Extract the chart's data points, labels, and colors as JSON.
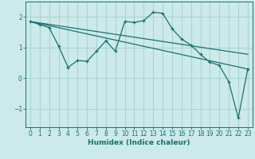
{
  "xlabel": "Humidex (Indice chaleur)",
  "xlim": [
    -0.5,
    23.5
  ],
  "ylim": [
    -1.6,
    2.5
  ],
  "yticks": [
    -1,
    0,
    1,
    2
  ],
  "xticks": [
    0,
    1,
    2,
    3,
    4,
    5,
    6,
    7,
    8,
    9,
    10,
    11,
    12,
    13,
    14,
    15,
    16,
    17,
    18,
    19,
    20,
    21,
    22,
    23
  ],
  "bg_color": "#cceaea",
  "line_color": "#1a7070",
  "grid_color": "#aad4d4",
  "series_main": {
    "x": [
      0,
      1,
      2,
      3,
      4,
      5,
      6,
      7,
      8,
      9,
      10,
      11,
      12,
      13,
      14,
      15,
      16,
      17,
      18,
      19,
      20,
      21,
      22,
      23
    ],
    "y": [
      1.85,
      1.75,
      1.65,
      1.05,
      0.35,
      0.58,
      0.55,
      0.88,
      1.22,
      0.88,
      1.85,
      1.82,
      1.88,
      2.15,
      2.12,
      1.62,
      1.28,
      1.08,
      0.78,
      0.52,
      0.42,
      -0.12,
      -1.3,
      0.3
    ]
  },
  "series_line1": {
    "x": [
      0,
      23
    ],
    "y": [
      1.85,
      0.78
    ]
  },
  "series_line2": {
    "x": [
      0,
      23
    ],
    "y": [
      1.85,
      0.3
    ]
  }
}
